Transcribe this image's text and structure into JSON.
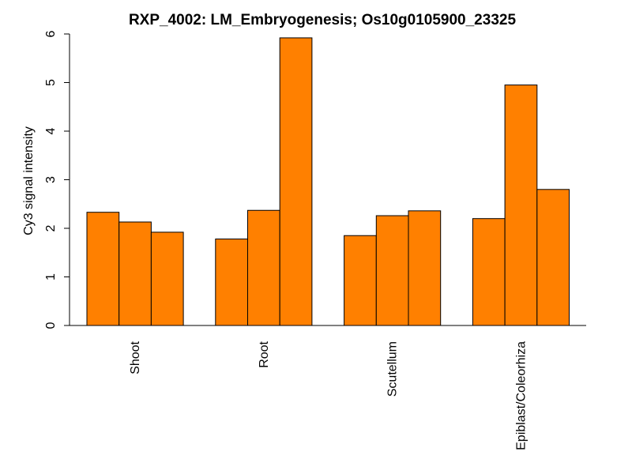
{
  "chart_data": {
    "type": "bar",
    "title": "RXP_4002: LM_Embryogenesis; Os10g0105900_23325",
    "xlabel": "",
    "ylabel": "Cy3 signal intensity",
    "ylim": [
      0,
      6
    ],
    "yticks": [
      0,
      1,
      2,
      3,
      4,
      5,
      6
    ],
    "grid": false,
    "legend": "none",
    "bar_color": "#ff8000",
    "bar_edge_color": "#000000",
    "categories": [
      "Shoot",
      "Root",
      "Scutellum",
      "Epiblast/Coleorhiza"
    ],
    "groups": [
      {
        "category": "Shoot",
        "values": [
          2.33,
          2.13,
          1.92
        ]
      },
      {
        "category": "Root",
        "values": [
          1.78,
          2.37,
          5.92
        ]
      },
      {
        "category": "Scutellum",
        "values": [
          1.85,
          2.26,
          2.36
        ]
      },
      {
        "category": "Epiblast/Coleorhiza",
        "values": [
          2.2,
          4.95,
          2.8
        ]
      }
    ]
  }
}
